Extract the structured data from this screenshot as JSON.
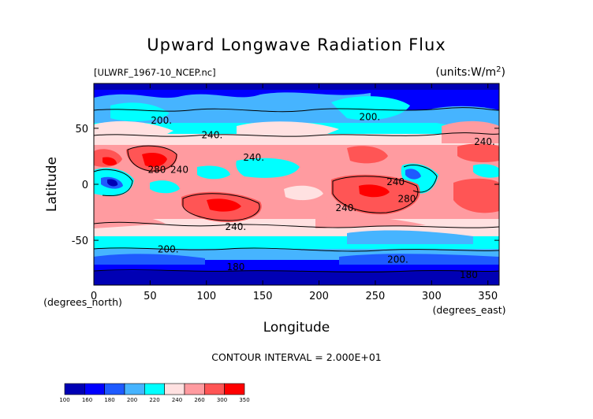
{
  "chart_data": {
    "type": "heatmap",
    "title": "Upward Longwave Radiation Flux",
    "file_label": "[ULWRF_1967-10_NCEP.nc]",
    "units_label": "(units:W/m^2)",
    "xlabel": "Longitude",
    "ylabel": "Latitude",
    "x_unit_label": "(degrees_east)",
    "y_unit_label": "(degrees_north)",
    "xlim": [
      0,
      360
    ],
    "ylim": [
      -90,
      90
    ],
    "x_ticks": [
      0,
      50,
      100,
      150,
      200,
      250,
      300,
      350
    ],
    "y_ticks": [
      50,
      0,
      -50
    ],
    "contour_interval_text": "CONTOUR INTERVAL = 2.000E+01",
    "contour_labels": [
      {
        "text": "200.",
        "lon": 60,
        "lat": 57
      },
      {
        "text": "240.",
        "lon": 105,
        "lat": 44
      },
      {
        "text": "200.",
        "lon": 245,
        "lat": 60
      },
      {
        "text": "240.",
        "lon": 347,
        "lat": 38
      },
      {
        "text": "240.",
        "lon": 142,
        "lat": 24
      },
      {
        "text": "280",
        "lon": 56,
        "lat": 13
      },
      {
        "text": "240",
        "lon": 76,
        "lat": 13
      },
      {
        "text": "240",
        "lon": 268,
        "lat": 2
      },
      {
        "text": "280",
        "lon": 278,
        "lat": -13
      },
      {
        "text": "240.",
        "lon": 224,
        "lat": -21
      },
      {
        "text": "240.",
        "lon": 126,
        "lat": -38
      },
      {
        "text": "200.",
        "lon": 66,
        "lat": -58
      },
      {
        "text": "200.",
        "lon": 270,
        "lat": -67
      },
      {
        "text": "180",
        "lon": 126,
        "lat": -74
      },
      {
        "text": "180",
        "lon": 333,
        "lat": -81
      }
    ],
    "colorbar": {
      "levels": [
        "100",
        "160",
        "180",
        "200",
        "220",
        "240",
        "260",
        "300",
        "350"
      ],
      "colors": [
        "#0000b4",
        "#0000ff",
        "#1e5aff",
        "#46b4ff",
        "#00ffff",
        "#ffe1e1",
        "#ff9ba0",
        "#ff5555",
        "#ff0000"
      ]
    }
  }
}
